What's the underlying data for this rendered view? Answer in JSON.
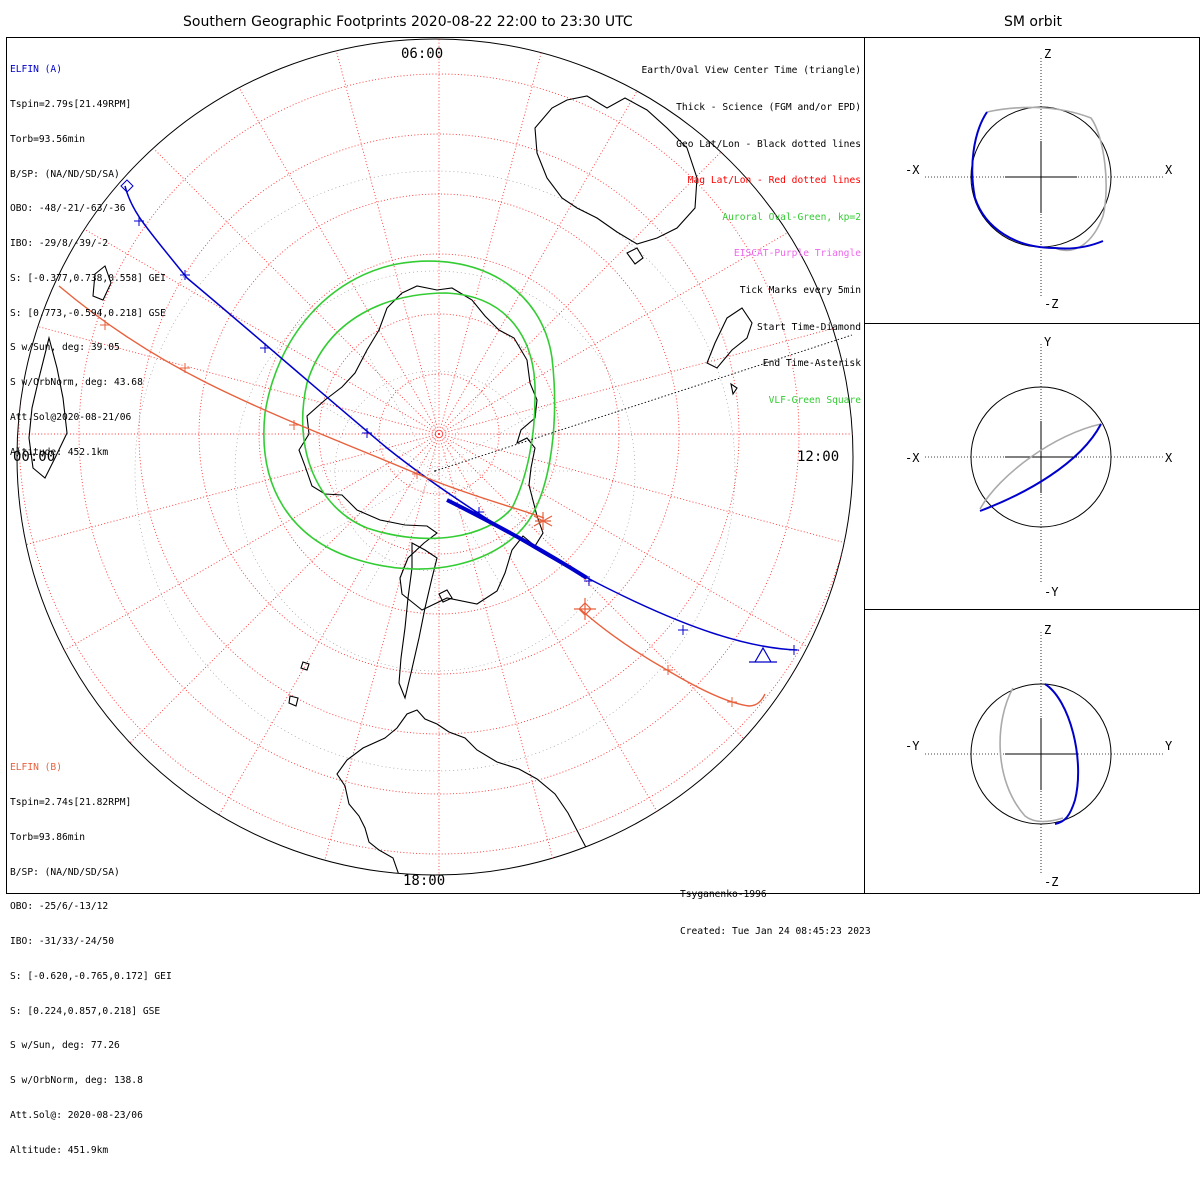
{
  "header": {
    "main_title": "Southern Geographic Footprints 2020-08-22 22:00 to 23:30 UTC",
    "side_title": "SM orbit"
  },
  "map": {
    "time_labels": {
      "top": "06:00",
      "left": "00:00",
      "right": "12:00",
      "bottom": "18:00"
    }
  },
  "elfin_a": {
    "name": "ELFIN (A)",
    "color": "#0000cc",
    "lines": [
      "Tspin=2.79s[21.49RPM]",
      "Torb=93.56min",
      "B/SP: (NA/ND/SD/SA)",
      "OBO: -48/-21/-63/-36",
      "IBO: -29/8/-39/-2",
      "S: [-0.377,0.738,0.558] GEI",
      "S: [0.773,-0.594,0.218] GSE",
      "S w/Sun, deg: 39.05",
      "S w/OrbNorm, deg: 43.68",
      "Att.Sol@2020-08-21/06",
      "Altitude: 452.1km"
    ]
  },
  "elfin_b": {
    "name": "ELFIN (B)",
    "color": "#e8603c",
    "lines": [
      "Tspin=2.74s[21.82RPM]",
      "Torb=93.86min",
      "B/SP: (NA/ND/SD/SA)",
      "OBO: -25/6/-13/12",
      "IBO: -31/33/-24/50",
      "S: [-0.620,-0.765,0.172] GEI",
      "S: [0.224,0.857,0.218] GSE",
      "S w/Sun, deg: 77.26",
      "S w/OrbNorm, deg: 138.8",
      "Att.Sol@: 2020-08-23/06",
      "Altitude: 451.9km"
    ]
  },
  "legend": [
    {
      "text": "Earth/Oval View Center Time (triangle)",
      "color": "#000000"
    },
    {
      "text": "Thick - Science (FGM and/or EPD)",
      "color": "#000000"
    },
    {
      "text": "Geo Lat/Lon - Black dotted lines",
      "color": "#000000"
    },
    {
      "text": "Mag Lat/Lon - Red dotted lines",
      "color": "#ff0000"
    },
    {
      "text": "Auroral Oval-Green, kp=2",
      "color": "#33cc33"
    },
    {
      "text": "EISCAT-Purple Triangle",
      "color": "#ee66ee"
    },
    {
      "text": "Tick Marks every 5min",
      "color": "#000000"
    },
    {
      "text": "Start Time-Diamond",
      "color": "#000000"
    },
    {
      "text": "End Time-Asterisk",
      "color": "#000000"
    },
    {
      "text": "VLF-Green Square",
      "color": "#33cc33"
    }
  ],
  "credits": {
    "model": "Tsyganenko-1996",
    "created": "Created: Tue Jan 24 08:45:23 2023"
  },
  "sm_panels": [
    {
      "h_neg": "-X",
      "h_pos": "X",
      "v_pos": "Z",
      "v_neg": "-Z"
    },
    {
      "h_neg": "-X",
      "h_pos": "X",
      "v_pos": "Y",
      "v_neg": "-Y"
    },
    {
      "h_neg": "-Y",
      "h_pos": "Y",
      "v_pos": "Z",
      "v_neg": "-Z"
    }
  ],
  "colors": {
    "elfin_a": "#0000cc",
    "elfin_b": "#e8603c",
    "auroral_oval": "#33cc33",
    "mag_grid": "#ff0000",
    "geo_grid": "#000000",
    "sm_gray": "#aaaaaa"
  }
}
